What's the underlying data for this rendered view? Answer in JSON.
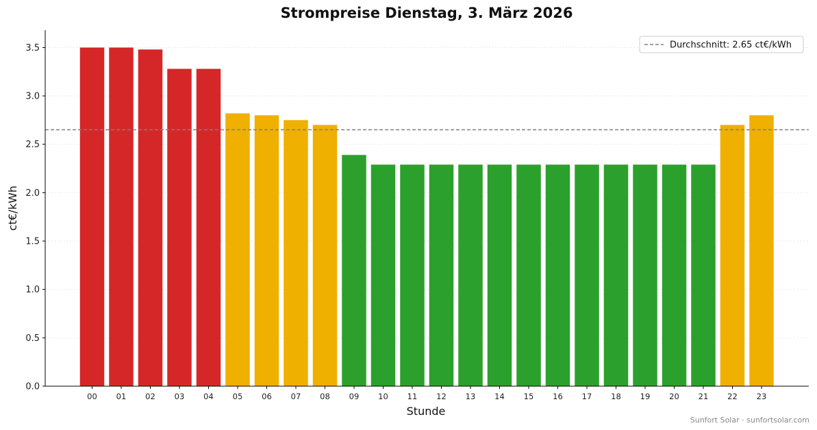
{
  "chart_data": {
    "type": "bar",
    "title": "Strompreise Dienstag, 3. März 2026",
    "xlabel": "Stunde",
    "ylabel": "ct€/kWh",
    "ylim": [
      0,
      3.68
    ],
    "yticks": [
      "0.0",
      "0.5",
      "1.0",
      "1.5",
      "2.0",
      "2.5",
      "3.0",
      "3.5"
    ],
    "categories": [
      "00",
      "01",
      "02",
      "03",
      "04",
      "05",
      "06",
      "07",
      "08",
      "09",
      "10",
      "11",
      "12",
      "13",
      "14",
      "15",
      "16",
      "17",
      "18",
      "19",
      "20",
      "21",
      "22",
      "23"
    ],
    "values": [
      3.5,
      3.5,
      3.48,
      3.28,
      3.28,
      2.82,
      2.8,
      2.75,
      2.7,
      2.39,
      2.29,
      2.29,
      2.29,
      2.29,
      2.29,
      2.29,
      2.29,
      2.29,
      2.29,
      2.29,
      2.29,
      2.29,
      2.7,
      2.8
    ],
    "bar_colors": [
      "#d62728",
      "#d62728",
      "#d62728",
      "#d62728",
      "#d62728",
      "#f0b000",
      "#f0b000",
      "#f0b000",
      "#f0b000",
      "#2ca02c",
      "#2ca02c",
      "#2ca02c",
      "#2ca02c",
      "#2ca02c",
      "#2ca02c",
      "#2ca02c",
      "#2ca02c",
      "#2ca02c",
      "#2ca02c",
      "#2ca02c",
      "#2ca02c",
      "#2ca02c",
      "#f0b000",
      "#f0b000"
    ],
    "average": {
      "value": 2.65,
      "label": "Durchschnitt: 2.65 ct€/kWh",
      "color": "#808080",
      "style": "dashed"
    },
    "legend_position": "top-right",
    "grid": "horizontal dotted"
  },
  "footer": "Sunfort Solar · sunfortsolar.com"
}
